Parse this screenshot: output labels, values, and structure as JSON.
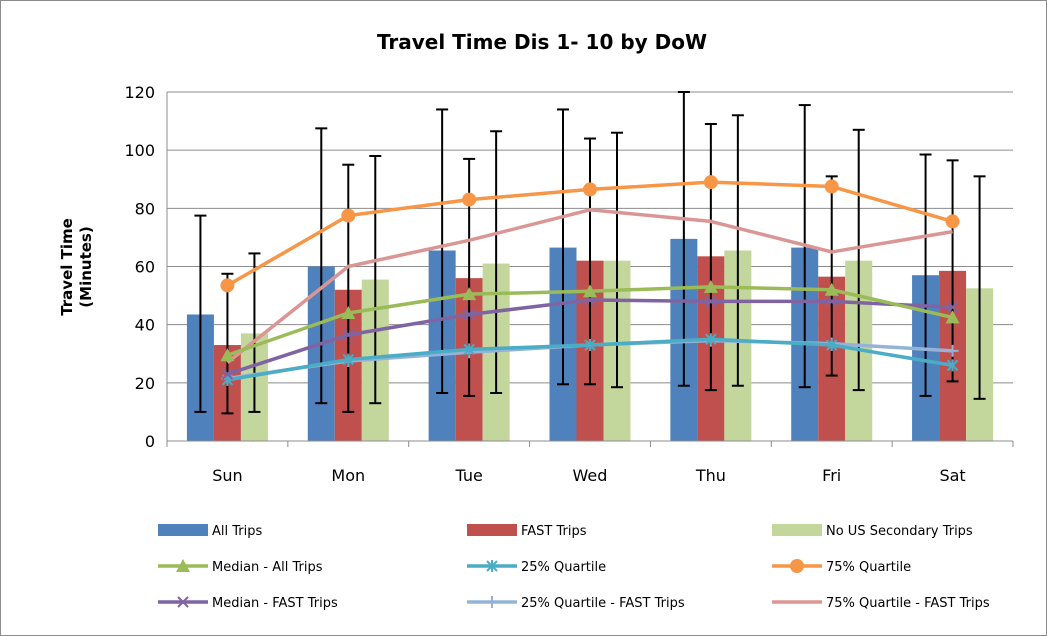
{
  "chart_data": {
    "type": "bar",
    "title": "Travel Time Dis 1- 10 by DoW",
    "ylabel_lines": [
      "Travel Time",
      "(Minutes)"
    ],
    "xlabel": "",
    "categories": [
      "Sun",
      "Mon",
      "Tue",
      "Wed",
      "Thu",
      "Fri",
      "Sat"
    ],
    "ylim": [
      0,
      120
    ],
    "yticks": [
      0,
      20,
      40,
      60,
      80,
      100,
      120
    ],
    "grid": "horizontal",
    "legend_position": "bottom",
    "bar_series": [
      {
        "name": "All Trips",
        "color": "#4f81bd",
        "values": [
          43.5,
          60,
          65.5,
          66.5,
          69.5,
          66.5,
          57
        ],
        "error_low": [
          10,
          13,
          16.5,
          19.5,
          19,
          18.5,
          15.5
        ],
        "error_high": [
          77.5,
          107.5,
          114,
          114,
          120,
          115.5,
          98.5
        ]
      },
      {
        "name": "FAST Trips",
        "color": "#c0504d",
        "values": [
          33,
          52,
          56,
          62,
          63.5,
          56.5,
          58.5
        ],
        "error_low": [
          9.5,
          10,
          15.5,
          19.5,
          17.5,
          22.5,
          20.5
        ],
        "error_high": [
          57.5,
          95,
          97,
          104,
          109,
          91,
          96.5
        ]
      },
      {
        "name": "No US Secondary Trips",
        "color": "#c3d69b",
        "values": [
          37,
          55.5,
          61,
          62,
          65.5,
          62,
          52.5
        ],
        "error_low": [
          10,
          13,
          16.5,
          18.5,
          19,
          17.5,
          14.5
        ],
        "error_high": [
          64.5,
          98,
          106.5,
          106,
          112,
          107,
          91
        ]
      }
    ],
    "line_series": [
      {
        "name": "Median - All Trips",
        "color": "#9bbb59",
        "marker": "triangle",
        "values": [
          29.5,
          44,
          50.5,
          51.5,
          53,
          52,
          42.5
        ]
      },
      {
        "name": "25% Quartile",
        "color": "#4bacc6",
        "marker": "star",
        "values": [
          21,
          28,
          31.5,
          33,
          35,
          33,
          26
        ]
      },
      {
        "name": "75% Quartile",
        "color": "#f79646",
        "marker": "circle",
        "values": [
          53.5,
          77.5,
          83,
          86.5,
          89,
          87.5,
          75.5
        ]
      },
      {
        "name": "Median - FAST Trips",
        "color": "#8064a2",
        "marker": "x",
        "values": [
          23,
          36.5,
          43.5,
          48.5,
          48,
          48,
          46
        ]
      },
      {
        "name": "25% Quartile - FAST Trips",
        "color": "#95b3d7",
        "marker": "plus",
        "values": [
          21.5,
          27.5,
          30.5,
          33,
          34.5,
          33.5,
          31
        ]
      },
      {
        "name": "75% Quartile - FAST Trips",
        "color": "#da9694",
        "marker": "none",
        "values": [
          27,
          60,
          69,
          79.5,
          75.5,
          65,
          72
        ]
      }
    ],
    "legend_order": [
      [
        "All Trips",
        "FAST Trips",
        "No US Secondary Trips"
      ],
      [
        "Median - All Trips",
        "25% Quartile",
        "75% Quartile"
      ],
      [
        "Median - FAST Trips",
        "25% Quartile - FAST Trips",
        "75% Quartile - FAST Trips"
      ]
    ]
  }
}
